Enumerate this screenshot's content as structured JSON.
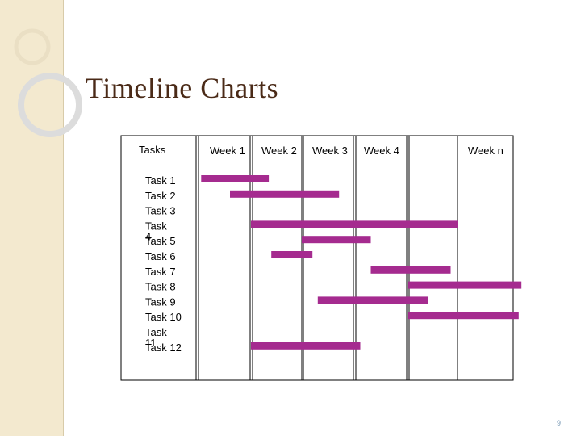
{
  "slide": {
    "title": "Timeline Charts",
    "page_number": "9"
  },
  "colors": {
    "bar": "#a52b8f",
    "grid": "#000000",
    "title": "#4a2a17",
    "side_band": "#f3e9cf"
  },
  "chart_data": {
    "type": "bar",
    "subtype": "gantt",
    "title": "",
    "xlabel": "",
    "ylabel": "",
    "header_label": "Tasks",
    "x_categories": [
      "Week 1",
      "Week 2",
      "Week 3",
      "Week 4",
      "",
      "Week n"
    ],
    "xlim": [
      0,
      6.2
    ],
    "tasks": [
      {
        "name": "Task 1",
        "start": 0.05,
        "end": 1.35
      },
      {
        "name": "Task 2",
        "start": 0.6,
        "end": 2.7
      },
      {
        "name": "Task 3",
        "start": 0,
        "end": 0
      },
      {
        "name": "Task 4",
        "start": 1.0,
        "end": 5.0
      },
      {
        "name": "Task 5",
        "start": 2.0,
        "end": 3.3
      },
      {
        "name": "Task 6",
        "start": 1.4,
        "end": 2.2
      },
      {
        "name": "Task 7",
        "start": 3.3,
        "end": 4.85
      },
      {
        "name": "Task 8",
        "start": 4.0,
        "end": 6.15
      },
      {
        "name": "Task 9",
        "start": 2.3,
        "end": 4.4
      },
      {
        "name": "Task 10",
        "start": 4.0,
        "end": 6.1
      },
      {
        "name": "Task 11",
        "start": 0,
        "end": 0
      },
      {
        "name": "Task 12",
        "start": 1.0,
        "end": 3.1
      }
    ],
    "grid": true,
    "legend": "none"
  }
}
